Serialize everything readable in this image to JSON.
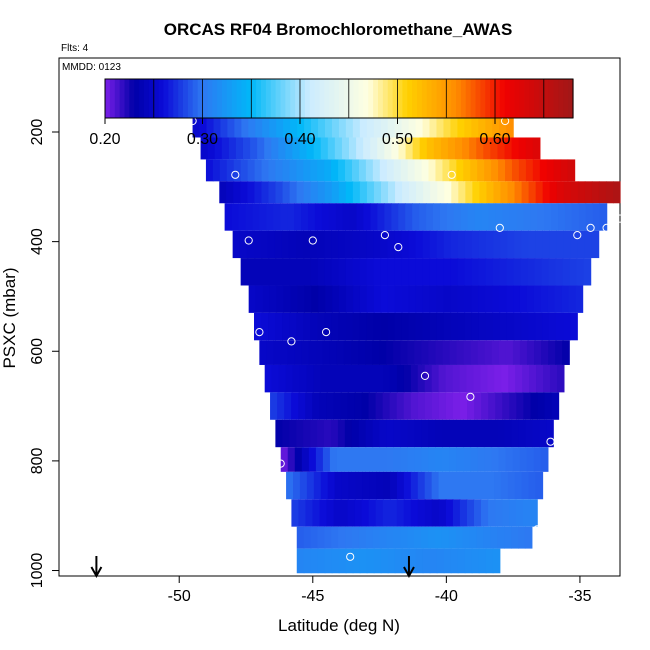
{
  "title": "ORCAS RF04 Bromochloromethane_AWAS",
  "flights_note": "Flts: 4",
  "mmdd_note": "MMDD: 0123",
  "chart_data": {
    "type": "heatmap",
    "title": "ORCAS RF04 Bromochloromethane_AWAS",
    "xlabel": "Latitude (deg N)",
    "ylabel": "PSXC (mbar)",
    "xlim": [
      -54.5,
      -33.5
    ],
    "ylim": [
      1010,
      65
    ],
    "x_ticks": [
      -50,
      -45,
      -40,
      -35
    ],
    "x_tick_labels": [
      "-50",
      "-45",
      "-40",
      "-35"
    ],
    "y_ticks": [
      200,
      400,
      600,
      800,
      1000
    ],
    "y_tick_labels": [
      "200",
      "400",
      "600",
      "800",
      "1000"
    ],
    "colorbar": {
      "range": [
        0.2,
        0.68
      ],
      "ticks": [
        0.2,
        0.3,
        0.4,
        0.5,
        0.6
      ],
      "tick_labels": [
        "0.20",
        "0.30",
        "0.40",
        "0.50",
        "0.60"
      ],
      "stops": [
        {
          "v": 0.2,
          "c": "#7b1fe8"
        },
        {
          "v": 0.23,
          "c": "#0000a8"
        },
        {
          "v": 0.26,
          "c": "#0b0bd8"
        },
        {
          "v": 0.3,
          "c": "#2e78f2"
        },
        {
          "v": 0.35,
          "c": "#00b8f8"
        },
        {
          "v": 0.41,
          "c": "#ccecff"
        },
        {
          "v": 0.47,
          "c": "#ffffe0"
        },
        {
          "v": 0.51,
          "c": "#ffd000"
        },
        {
          "v": 0.56,
          "c": "#ff8c00"
        },
        {
          "v": 0.61,
          "c": "#f00000"
        },
        {
          "v": 0.68,
          "c": "#a01818"
        }
      ]
    },
    "bands": [
      {
        "p": [
          170,
          210
        ],
        "lat": [
          -49.5,
          -37.5
        ],
        "vals": [
          0.25,
          0.31,
          0.37,
          0.43,
          0.5,
          0.56
        ]
      },
      {
        "p": [
          210,
          250
        ],
        "lat": [
          -49.2,
          -36.5
        ],
        "vals": [
          0.25,
          0.29,
          0.35,
          0.42,
          0.52,
          0.58,
          0.63
        ]
      },
      {
        "p": [
          250,
          290
        ],
        "lat": [
          -49.0,
          -35.2
        ],
        "vals": [
          0.26,
          0.3,
          0.34,
          0.42,
          0.5,
          0.58,
          0.64
        ]
      },
      {
        "p": [
          290,
          330
        ],
        "lat": [
          -48.5,
          -33.5
        ],
        "vals": [
          0.24,
          0.28,
          0.33,
          0.4,
          0.47,
          0.55,
          0.63,
          0.67
        ]
      },
      {
        "p": [
          330,
          380
        ],
        "lat": [
          -48.3,
          -34.0
        ],
        "vals": [
          0.26,
          0.27,
          0.25,
          0.29,
          0.31,
          0.3,
          0.29
        ]
      },
      {
        "p": [
          380,
          430
        ],
        "lat": [
          -48.0,
          -34.3
        ],
        "vals": [
          0.25,
          0.24,
          0.25,
          0.27,
          0.28,
          0.28
        ]
      },
      {
        "p": [
          430,
          480
        ],
        "lat": [
          -47.7,
          -34.6
        ],
        "vals": [
          0.24,
          0.24,
          0.26,
          0.26,
          0.27,
          0.28
        ]
      },
      {
        "p": [
          480,
          530
        ],
        "lat": [
          -47.4,
          -34.9
        ],
        "vals": [
          0.25,
          0.23,
          0.26,
          0.25,
          0.26,
          0.27
        ]
      },
      {
        "p": [
          530,
          580
        ],
        "lat": [
          -47.2,
          -35.1
        ],
        "vals": [
          0.26,
          0.24,
          0.23,
          0.24,
          0.25,
          0.26
        ]
      },
      {
        "p": [
          580,
          625
        ],
        "lat": [
          -47.0,
          -35.4
        ],
        "vals": [
          0.25,
          0.24,
          0.23,
          0.22,
          0.21,
          0.23
        ]
      },
      {
        "p": [
          625,
          675
        ],
        "lat": [
          -46.8,
          -35.6
        ],
        "vals": [
          0.26,
          0.24,
          0.24,
          0.21,
          0.2,
          0.22
        ]
      },
      {
        "p": [
          675,
          725
        ],
        "lat": [
          -46.6,
          -35.8
        ],
        "vals": [
          0.28,
          0.24,
          0.23,
          0.21,
          0.2,
          0.22,
          0.24
        ]
      },
      {
        "p": [
          725,
          775
        ],
        "lat": [
          -46.4,
          -36.0
        ],
        "vals": [
          0.23,
          0.22,
          0.25,
          0.24,
          0.24,
          0.25
        ]
      },
      {
        "p": [
          775,
          820
        ],
        "lat": [
          -46.2,
          -36.2
        ],
        "vals": [
          0.2,
          0.3,
          0.3,
          0.31,
          0.3,
          0.29
        ]
      },
      {
        "p": [
          820,
          870
        ],
        "lat": [
          -46.0,
          -36.4
        ],
        "vals": [
          0.3,
          0.25,
          0.24,
          0.3,
          0.3,
          0.29
        ]
      },
      {
        "p": [
          870,
          920
        ],
        "lat": [
          -45.8,
          -36.6
        ],
        "vals": [
          0.28,
          0.25,
          0.27,
          0.25,
          0.3,
          0.31
        ]
      },
      {
        "p": [
          920,
          960
        ],
        "lat": [
          -45.6,
          -36.8
        ],
        "vals": [
          0.29,
          0.3,
          0.31,
          0.32,
          0.31,
          0.3
        ]
      },
      {
        "p": [
          960,
          1005
        ],
        "lat": [
          -45.6,
          -38.0
        ],
        "vals": [
          0.31,
          0.32,
          0.31,
          0.32
        ]
      }
    ],
    "points": [
      {
        "x": -49.5,
        "y": 180
      },
      {
        "x": -37.8,
        "y": 180
      },
      {
        "x": -47.9,
        "y": 278
      },
      {
        "x": -39.8,
        "y": 278
      },
      {
        "x": -33.5,
        "y": 358
      },
      {
        "x": -38.0,
        "y": 375
      },
      {
        "x": -34.6,
        "y": 375
      },
      {
        "x": -34.0,
        "y": 375
      },
      {
        "x": -35.1,
        "y": 388
      },
      {
        "x": -42.3,
        "y": 388
      },
      {
        "x": -47.4,
        "y": 398
      },
      {
        "x": -45.0,
        "y": 398
      },
      {
        "x": -41.8,
        "y": 410
      },
      {
        "x": -47.0,
        "y": 565
      },
      {
        "x": -44.5,
        "y": 565
      },
      {
        "x": -45.8,
        "y": 582
      },
      {
        "x": -40.8,
        "y": 645
      },
      {
        "x": -39.1,
        "y": 683
      },
      {
        "x": -36.1,
        "y": 765
      },
      {
        "x": -47.6,
        "y": 780
      },
      {
        "x": -46.2,
        "y": 805
      },
      {
        "x": -36.6,
        "y": 925
      },
      {
        "x": -43.6,
        "y": 975
      },
      {
        "x": -46.5,
        "y": 983
      }
    ],
    "arrows": [
      -53.1,
      -41.4
    ]
  }
}
